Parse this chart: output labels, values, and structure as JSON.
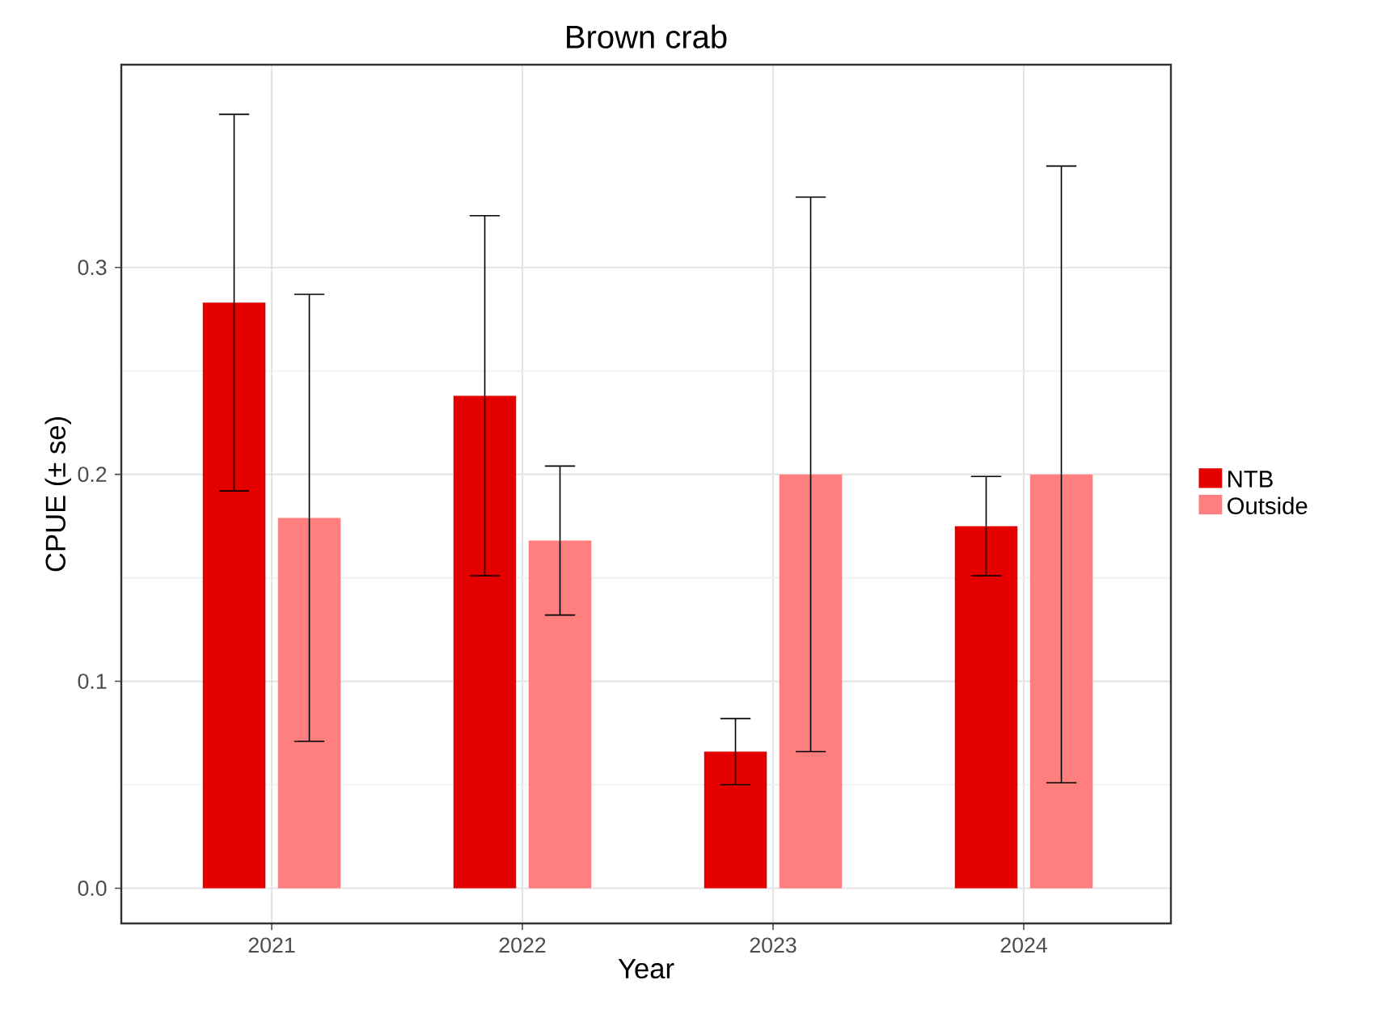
{
  "chart_data": {
    "type": "bar",
    "title": "Brown crab",
    "xlabel": "Year",
    "ylabel": "CPUE (± se)",
    "categories": [
      "2021",
      "2022",
      "2023",
      "2024"
    ],
    "series": [
      {
        "name": "NTB",
        "color": "#e50000",
        "values": [
          0.283,
          0.238,
          0.066,
          0.175
        ],
        "errors": [
          0.091,
          0.087,
          0.016,
          0.024
        ]
      },
      {
        "name": "Outside",
        "color": "#ff7f7f",
        "values": [
          0.179,
          0.168,
          0.2,
          0.2
        ],
        "errors": [
          0.108,
          0.036,
          0.134,
          0.149
        ]
      }
    ],
    "ylim": [
      -0.017,
      0.398
    ],
    "yticks": [
      {
        "value": 0,
        "label": "0.0"
      },
      0.1,
      0.2,
      0.3
    ],
    "grid": true,
    "legend": "right"
  }
}
